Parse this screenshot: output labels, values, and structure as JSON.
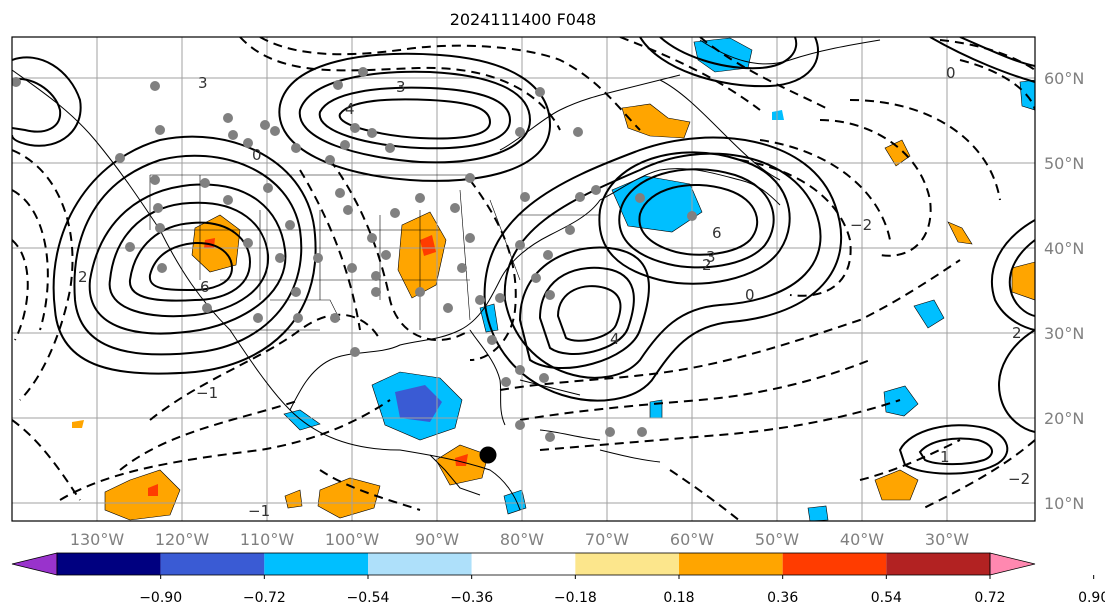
{
  "title": "2024111400 F048",
  "lon_ticks": [
    "130°W",
    "120°W",
    "110°W",
    "100°W",
    "90°W",
    "80°W",
    "70°W",
    "60°W",
    "50°W",
    "40°W",
    "30°W"
  ],
  "lat_ticks": [
    "60°N",
    "50°N",
    "40°N",
    "30°N",
    "20°N",
    "10°N"
  ],
  "colorbar": {
    "labels": [
      "−0.90",
      "−0.72",
      "−0.54",
      "−0.36",
      "−0.18",
      "0.18",
      "0.36",
      "0.54",
      "0.72",
      "0.90"
    ],
    "colors": [
      "#9933cc",
      "#000080",
      "#3a5bd4",
      "#00bfff",
      "#aee0fa",
      "#ffffff",
      "#fce68c",
      "#ffa500",
      "#ff3c00",
      "#b22222",
      "#ff88b0"
    ]
  },
  "contour_labels": [
    "3",
    "2",
    "4",
    "0",
    "6",
    "−1",
    "1",
    "−2",
    "2",
    "3",
    "4",
    "6",
    "0",
    "2",
    "3",
    "0",
    "−2",
    "−1"
  ],
  "marker_color": "#000000"
}
